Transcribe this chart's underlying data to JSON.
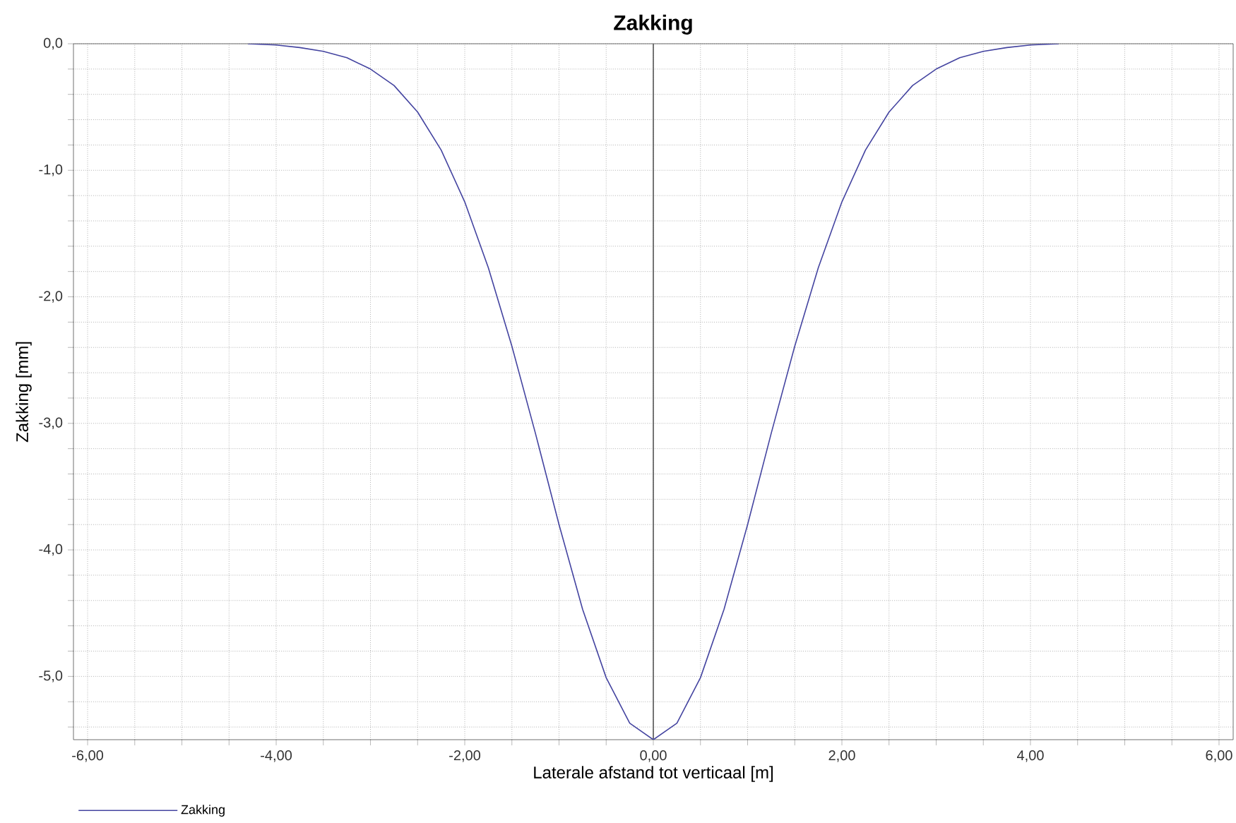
{
  "chart_data": {
    "type": "line",
    "title": "Zakking",
    "xlabel": "Laterale afstand tot verticaal [m]",
    "ylabel": "Zakking [mm]",
    "xlim": [
      -6.15,
      6.15
    ],
    "ylim": [
      -5.5,
      0
    ],
    "xticks": [
      {
        "value": -6,
        "label": "-6,00"
      },
      {
        "value": -5.5,
        "label": null
      },
      {
        "value": -5,
        "label": null
      },
      {
        "value": -4.5,
        "label": null
      },
      {
        "value": -4,
        "label": "-4,00"
      },
      {
        "value": -3.5,
        "label": null
      },
      {
        "value": -3,
        "label": null
      },
      {
        "value": -2.5,
        "label": null
      },
      {
        "value": -2,
        "label": "-2,00"
      },
      {
        "value": -1.5,
        "label": null
      },
      {
        "value": -1,
        "label": null
      },
      {
        "value": -0.5,
        "label": null
      },
      {
        "value": 0,
        "label": "0,00"
      },
      {
        "value": 0.5,
        "label": null
      },
      {
        "value": 1,
        "label": null
      },
      {
        "value": 1.5,
        "label": null
      },
      {
        "value": 2,
        "label": "2,00"
      },
      {
        "value": 2.5,
        "label": null
      },
      {
        "value": 3,
        "label": null
      },
      {
        "value": 3.5,
        "label": null
      },
      {
        "value": 4,
        "label": "4,00"
      },
      {
        "value": 4.5,
        "label": null
      },
      {
        "value": 5,
        "label": null
      },
      {
        "value": 5.5,
        "label": null
      },
      {
        "value": 6,
        "label": "6,00"
      }
    ],
    "yticks": [
      {
        "value": 0,
        "label": "0,0"
      },
      {
        "value": -0.2,
        "label": null
      },
      {
        "value": -0.4,
        "label": null
      },
      {
        "value": -0.6,
        "label": null
      },
      {
        "value": -0.8,
        "label": null
      },
      {
        "value": -1,
        "label": "-1,0"
      },
      {
        "value": -1.2,
        "label": null
      },
      {
        "value": -1.4,
        "label": null
      },
      {
        "value": -1.6,
        "label": null
      },
      {
        "value": -1.8,
        "label": null
      },
      {
        "value": -2,
        "label": "-2,0"
      },
      {
        "value": -2.2,
        "label": null
      },
      {
        "value": -2.4,
        "label": null
      },
      {
        "value": -2.6,
        "label": null
      },
      {
        "value": -2.8,
        "label": null
      },
      {
        "value": -3,
        "label": "-3,0"
      },
      {
        "value": -3.2,
        "label": null
      },
      {
        "value": -3.4,
        "label": null
      },
      {
        "value": -3.6,
        "label": null
      },
      {
        "value": -3.8,
        "label": null
      },
      {
        "value": -4,
        "label": "-4,0"
      },
      {
        "value": -4.2,
        "label": null
      },
      {
        "value": -4.4,
        "label": null
      },
      {
        "value": -4.6,
        "label": null
      },
      {
        "value": -4.8,
        "label": null
      },
      {
        "value": -5,
        "label": "-5,0"
      },
      {
        "value": -5.2,
        "label": null
      },
      {
        "value": -5.4,
        "label": null
      }
    ],
    "grid": true,
    "legend": "bottom left",
    "marker": "none",
    "line_style": "solid",
    "ref_lines": [
      {
        "axis": "x",
        "value": 0,
        "color": "#555555"
      }
    ],
    "x": [
      -4.3,
      -4.0,
      -3.75,
      -3.5,
      -3.25,
      -3.0,
      -2.75,
      -2.5,
      -2.25,
      -2.0,
      -1.75,
      -1.5,
      -1.25,
      -1.0,
      -0.75,
      -0.5,
      -0.25,
      0,
      0.25,
      0.5,
      0.75,
      1.0,
      1.25,
      1.5,
      1.75,
      2.0,
      2.25,
      2.5,
      2.75,
      3.0,
      3.25,
      3.5,
      3.75,
      4.0,
      4.3
    ],
    "series": [
      {
        "name": "Zakking",
        "color": "#4444a0",
        "values": [
          0.0,
          -0.01,
          -0.03,
          -0.06,
          -0.11,
          -0.2,
          -0.33,
          -0.54,
          -0.84,
          -1.25,
          -1.77,
          -2.39,
          -3.08,
          -3.8,
          -4.47,
          -5.01,
          -5.37,
          -5.5,
          -5.37,
          -5.01,
          -4.47,
          -3.8,
          -3.08,
          -2.39,
          -1.77,
          -1.25,
          -0.84,
          -0.54,
          -0.33,
          -0.2,
          -0.11,
          -0.06,
          -0.03,
          -0.01,
          0.0
        ]
      }
    ]
  }
}
